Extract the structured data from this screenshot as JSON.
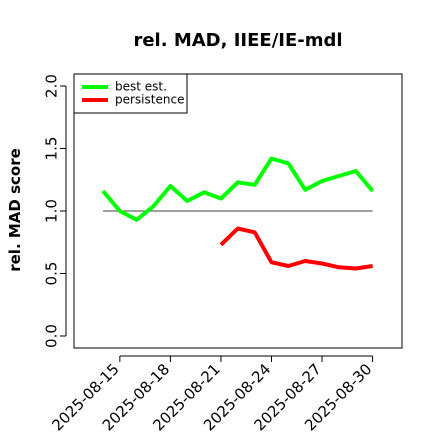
{
  "chart_data": {
    "type": "line",
    "title": "rel. MAD, IIEE/IE-mdl",
    "xlabel": "",
    "ylabel": "rel. MAD score",
    "ylim": [
      0,
      2
    ],
    "yticks": [
      "0.0",
      "0.5",
      "1.0",
      "1.5",
      "2.0"
    ],
    "xticks": [
      "2025-08-15",
      "2025-08-18",
      "2025-08-21",
      "2025-08-24",
      "2025-08-27",
      "2025-08-30"
    ],
    "reference_line": 1.0,
    "legend_position": "top-left",
    "grid": false,
    "series": [
      {
        "name": "best est.",
        "color": "#00ff00",
        "points": [
          [
            "2025-08-14",
            1.16
          ],
          [
            "2025-08-15",
            1.0
          ],
          [
            "2025-08-16",
            0.93
          ],
          [
            "2025-08-17",
            1.04
          ],
          [
            "2025-08-18",
            1.2
          ],
          [
            "2025-08-19",
            1.08
          ],
          [
            "2025-08-20",
            1.15
          ],
          [
            "2025-08-21",
            1.1
          ],
          [
            "2025-08-22",
            1.23
          ],
          [
            "2025-08-23",
            1.21
          ],
          [
            "2025-08-24",
            1.42
          ],
          [
            "2025-08-25",
            1.38
          ],
          [
            "2025-08-26",
            1.17
          ],
          [
            "2025-08-27",
            1.24
          ],
          [
            "2025-08-28",
            1.28
          ],
          [
            "2025-08-29",
            1.32
          ],
          [
            "2025-08-30",
            1.16
          ]
        ]
      },
      {
        "name": "persistence",
        "color": "#ff0000",
        "points": [
          [
            "2025-08-21",
            0.73
          ],
          [
            "2025-08-22",
            0.86
          ],
          [
            "2025-08-23",
            0.83
          ],
          [
            "2025-08-24",
            0.59
          ],
          [
            "2025-08-25",
            0.56
          ],
          [
            "2025-08-26",
            0.6
          ],
          [
            "2025-08-27",
            0.58
          ],
          [
            "2025-08-28",
            0.55
          ],
          [
            "2025-08-29",
            0.54
          ],
          [
            "2025-08-30",
            0.56
          ]
        ]
      }
    ]
  }
}
